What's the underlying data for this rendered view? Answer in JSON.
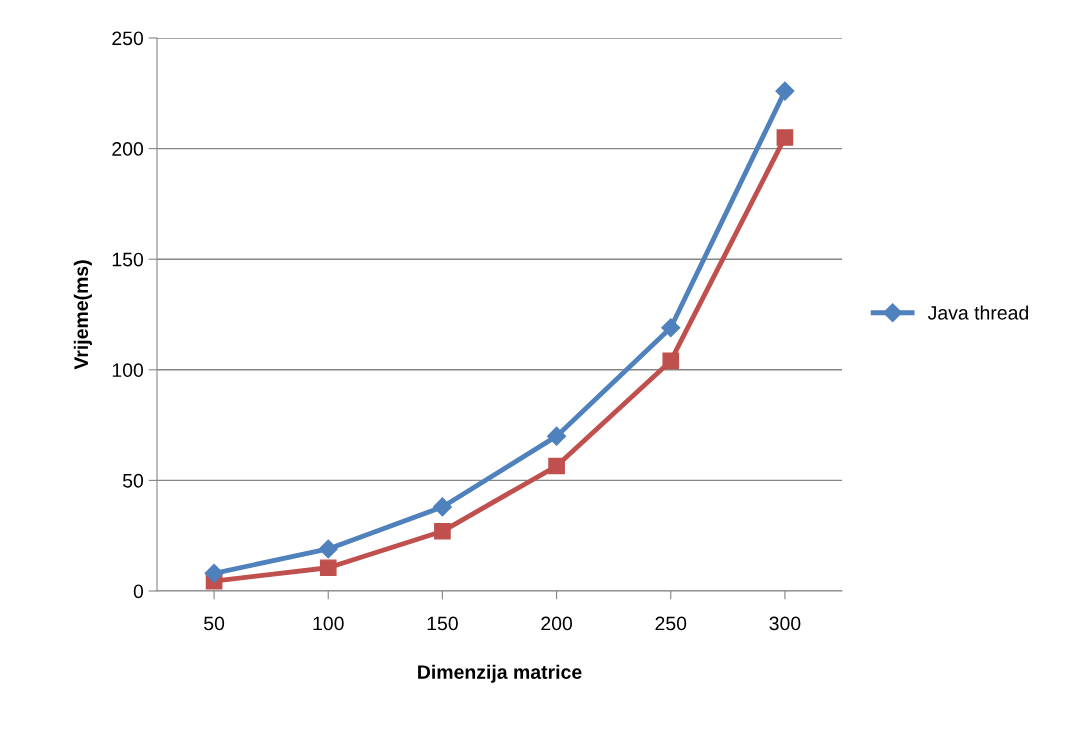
{
  "chart_data": {
    "type": "line",
    "xlabel": "Dimenzija matrice",
    "ylabel": "Vrijeme(ms)",
    "categories": [
      "50",
      "100",
      "150",
      "200",
      "250",
      "300"
    ],
    "series": [
      {
        "name": "Java thread",
        "color": "#4f81bd",
        "marker": "diamond",
        "values": [
          8,
          19,
          38,
          70,
          119,
          226
        ]
      },
      {
        "color": "#c0504d",
        "marker": "square",
        "values": [
          4.5,
          10.5,
          27,
          56.5,
          104,
          205
        ]
      }
    ],
    "ylim": [
      0,
      250
    ],
    "yticks": [
      0,
      50,
      100,
      150,
      200,
      250
    ],
    "grid": "y",
    "legend": "right"
  }
}
